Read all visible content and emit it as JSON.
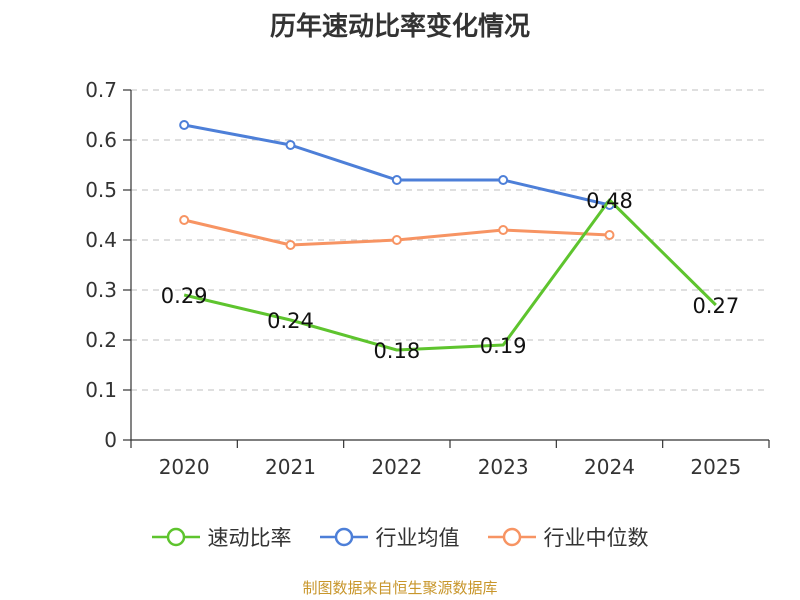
{
  "chart_data": {
    "type": "line",
    "title": "历年速动比率变化情况",
    "categories": [
      "2020",
      "2021",
      "2022",
      "2023",
      "2024",
      "2025"
    ],
    "ylim": [
      0,
      0.7
    ],
    "yticks": [
      0,
      0.1,
      0.2,
      0.3,
      0.4,
      0.5,
      0.6,
      0.7
    ],
    "ytick_labels": [
      "0",
      "0.1",
      "0.2",
      "0.3",
      "0.4",
      "0.5",
      "0.6",
      "0.7"
    ],
    "grid": true,
    "legend_position": "bottom",
    "series": [
      {
        "name": "速动比率",
        "color": "#5ec42e",
        "values": [
          0.29,
          0.24,
          0.18,
          0.19,
          0.48,
          0.27
        ],
        "labels": [
          "0.29",
          "0.24",
          "0.18",
          "0.19",
          "0.48",
          "0.27"
        ],
        "markers": false
      },
      {
        "name": "行业均值",
        "color": "#4d7fd8",
        "values": [
          0.63,
          0.59,
          0.52,
          0.52,
          0.47,
          null
        ],
        "markers": true
      },
      {
        "name": "行业中位数",
        "color": "#f79463",
        "values": [
          0.44,
          0.39,
          0.4,
          0.42,
          0.41,
          null
        ],
        "markers": true
      }
    ]
  },
  "legend": {
    "items": [
      {
        "label": "速动比率",
        "color": "#5ec42e"
      },
      {
        "label": "行业均值",
        "color": "#4d7fd8"
      },
      {
        "label": "行业中位数",
        "color": "#f79463"
      }
    ]
  },
  "source_note": "制图数据来自恒生聚源数据库"
}
